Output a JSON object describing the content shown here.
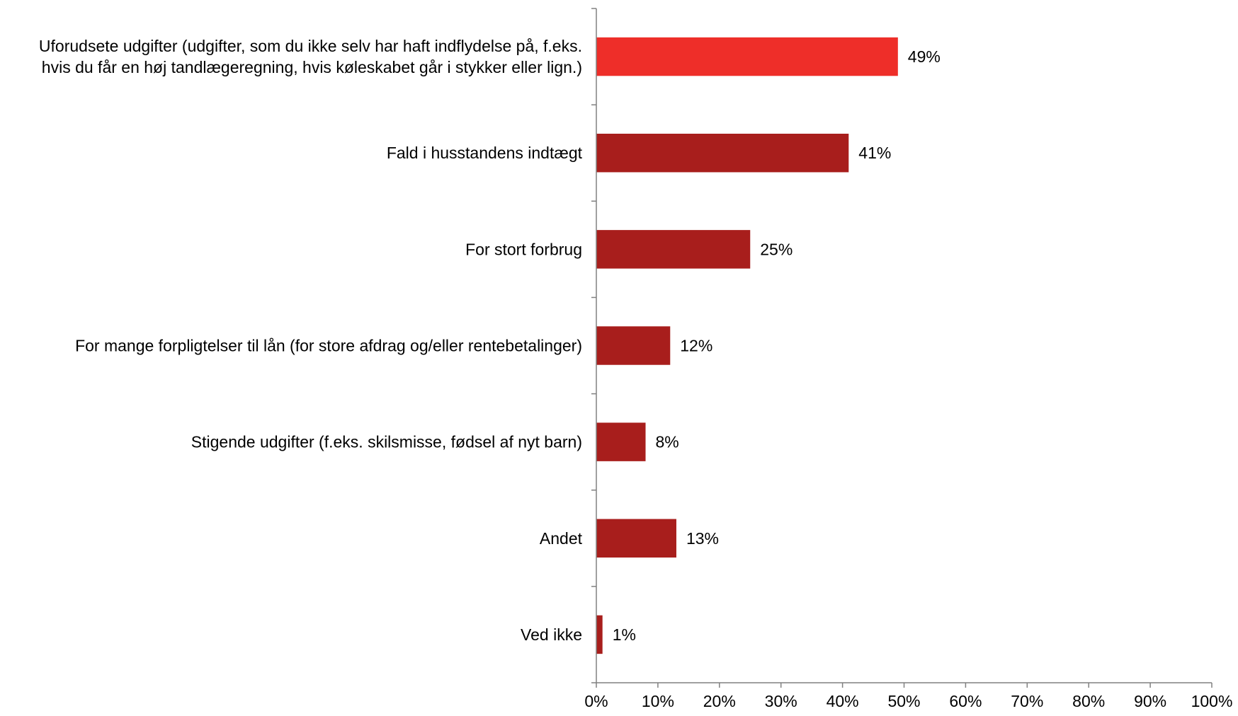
{
  "chart_data": {
    "type": "bar",
    "orientation": "horizontal",
    "title": "",
    "xlabel": "",
    "ylabel": "",
    "xlim": [
      0,
      100
    ],
    "x_ticks": [
      {
        "value": 0,
        "label": "0%"
      },
      {
        "value": 10,
        "label": "10%"
      },
      {
        "value": 20,
        "label": "20%"
      },
      {
        "value": 30,
        "label": "30%"
      },
      {
        "value": 40,
        "label": "40%"
      },
      {
        "value": 50,
        "label": "50%"
      },
      {
        "value": 60,
        "label": "60%"
      },
      {
        "value": 70,
        "label": "70%"
      },
      {
        "value": 80,
        "label": "80%"
      },
      {
        "value": 90,
        "label": "90%"
      },
      {
        "value": 100,
        "label": "100%"
      }
    ],
    "grid": false,
    "legend": "none",
    "categories": [
      [
        "Uforudsete udgifter (udgifter, som du ikke selv har haft indflydelse på, f.eks.",
        "hvis du får en høj tandlægeregning, hvis køleskabet går i stykker eller lign.)"
      ],
      [
        "Fald i husstandens indtægt"
      ],
      [
        "For stort forbrug"
      ],
      [
        "For mange forpligtelser til lån (for store afdrag og/eller rentebetalinger)"
      ],
      [
        "Stigende udgifter (f.eks. skilsmisse, fødsel af nyt barn)"
      ],
      [
        "Andet"
      ],
      [
        "Ved ikke"
      ]
    ],
    "values": [
      49,
      41,
      25,
      12,
      8,
      13,
      1
    ],
    "value_labels": [
      "49%",
      "41%",
      "25%",
      "12%",
      "8%",
      "13%",
      "1%"
    ],
    "colors": {
      "highlight": "#EE2E29",
      "default": "#A81E1C",
      "axis": "#808080"
    },
    "highlight_index": 0
  }
}
